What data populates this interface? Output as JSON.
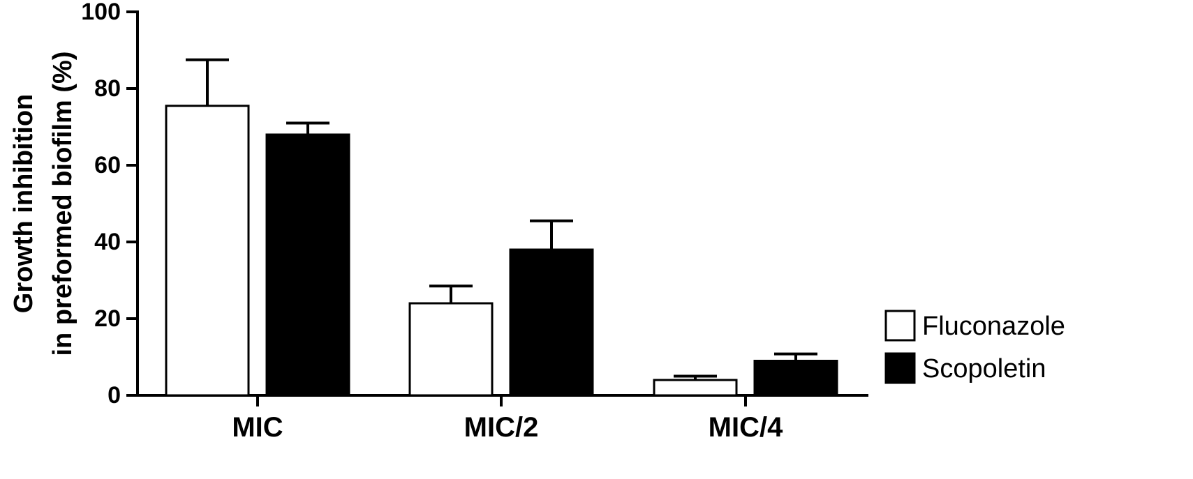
{
  "chart_data": {
    "type": "bar",
    "categories": [
      "MIC",
      "MIC/2",
      "MIC/4"
    ],
    "series": [
      {
        "name": "Fluconazole",
        "values": [
          75.5,
          24,
          4
        ],
        "errors": [
          12,
          4.5,
          1
        ],
        "fill": "#ffffff"
      },
      {
        "name": "Scopoletin",
        "values": [
          68,
          38,
          9
        ],
        "errors": [
          3,
          7.5,
          1.8
        ],
        "fill": "#000000"
      }
    ],
    "ylabel_lines": [
      "Growth inhibition",
      "in preformed biofilm (%)"
    ],
    "xlabel": "",
    "ylim": [
      0,
      100
    ],
    "yticks": [
      0,
      20,
      40,
      60,
      80,
      100
    ],
    "grid": false,
    "legend_position": "right",
    "colors": {
      "stroke": "#000000",
      "background": "#ffffff"
    }
  }
}
